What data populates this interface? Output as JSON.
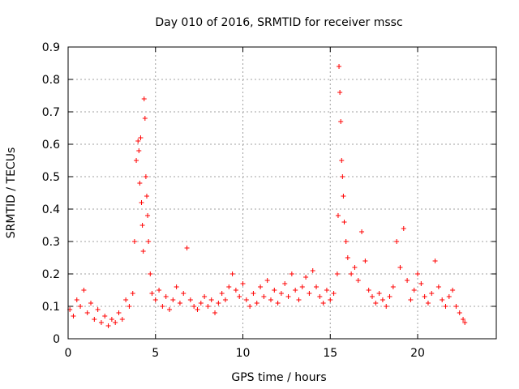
{
  "chart_data": {
    "type": "scatter",
    "title": "Day 010 of 2016, SRMTID for receiver mssc",
    "xlabel": "GPS time / hours",
    "ylabel": "SRMTID / TECUs",
    "xlim": [
      0,
      24.5
    ],
    "ylim": [
      0,
      0.9
    ],
    "xticks": [
      0,
      5,
      10,
      15,
      20
    ],
    "xtick_labels": [
      "0",
      "5",
      "10",
      "15",
      "20"
    ],
    "yticks": [
      0,
      0.1,
      0.2,
      0.3,
      0.4,
      0.5,
      0.6,
      0.7,
      0.8,
      0.9
    ],
    "ytick_labels": [
      "0",
      "0.1",
      "0.2",
      "0.3",
      "0.4",
      "0.5",
      "0.6",
      "0.7",
      "0.8",
      "0.9"
    ],
    "grid": true,
    "marker": "plus",
    "color": "#ff0000",
    "series": [
      {
        "name": "SRMTID",
        "points": [
          [
            0.1,
            0.09
          ],
          [
            0.3,
            0.07
          ],
          [
            0.5,
            0.12
          ],
          [
            0.7,
            0.1
          ],
          [
            0.9,
            0.15
          ],
          [
            1.1,
            0.08
          ],
          [
            1.3,
            0.11
          ],
          [
            1.5,
            0.06
          ],
          [
            1.7,
            0.09
          ],
          [
            1.9,
            0.05
          ],
          [
            2.1,
            0.07
          ],
          [
            2.3,
            0.04
          ],
          [
            2.5,
            0.06
          ],
          [
            2.7,
            0.05
          ],
          [
            2.9,
            0.08
          ],
          [
            3.1,
            0.06
          ],
          [
            3.3,
            0.12
          ],
          [
            3.5,
            0.1
          ],
          [
            3.7,
            0.14
          ],
          [
            3.8,
            0.3
          ],
          [
            3.9,
            0.55
          ],
          [
            4.0,
            0.61
          ],
          [
            4.05,
            0.58
          ],
          [
            4.1,
            0.48
          ],
          [
            4.15,
            0.62
          ],
          [
            4.2,
            0.42
          ],
          [
            4.25,
            0.35
          ],
          [
            4.3,
            0.27
          ],
          [
            4.35,
            0.74
          ],
          [
            4.4,
            0.68
          ],
          [
            4.45,
            0.5
          ],
          [
            4.5,
            0.44
          ],
          [
            4.55,
            0.38
          ],
          [
            4.6,
            0.3
          ],
          [
            4.7,
            0.2
          ],
          [
            4.8,
            0.14
          ],
          [
            5.0,
            0.12
          ],
          [
            5.2,
            0.15
          ],
          [
            5.4,
            0.1
          ],
          [
            5.6,
            0.13
          ],
          [
            5.8,
            0.09
          ],
          [
            6.0,
            0.12
          ],
          [
            6.2,
            0.16
          ],
          [
            6.4,
            0.11
          ],
          [
            6.6,
            0.14
          ],
          [
            6.8,
            0.28
          ],
          [
            7.0,
            0.12
          ],
          [
            7.2,
            0.1
          ],
          [
            7.4,
            0.09
          ],
          [
            7.6,
            0.11
          ],
          [
            7.8,
            0.13
          ],
          [
            8.0,
            0.1
          ],
          [
            8.2,
            0.12
          ],
          [
            8.4,
            0.08
          ],
          [
            8.6,
            0.11
          ],
          [
            8.8,
            0.14
          ],
          [
            9.0,
            0.12
          ],
          [
            9.2,
            0.16
          ],
          [
            9.4,
            0.2
          ],
          [
            9.6,
            0.15
          ],
          [
            9.8,
            0.13
          ],
          [
            10.0,
            0.17
          ],
          [
            10.2,
            0.12
          ],
          [
            10.4,
            0.1
          ],
          [
            10.6,
            0.14
          ],
          [
            10.8,
            0.11
          ],
          [
            11.0,
            0.16
          ],
          [
            11.2,
            0.13
          ],
          [
            11.4,
            0.18
          ],
          [
            11.6,
            0.12
          ],
          [
            11.8,
            0.15
          ],
          [
            12.0,
            0.11
          ],
          [
            12.2,
            0.14
          ],
          [
            12.4,
            0.17
          ],
          [
            12.6,
            0.13
          ],
          [
            12.8,
            0.2
          ],
          [
            13.0,
            0.15
          ],
          [
            13.2,
            0.12
          ],
          [
            13.4,
            0.16
          ],
          [
            13.6,
            0.19
          ],
          [
            13.8,
            0.14
          ],
          [
            14.0,
            0.21
          ],
          [
            14.2,
            0.16
          ],
          [
            14.4,
            0.13
          ],
          [
            14.6,
            0.11
          ],
          [
            14.8,
            0.15
          ],
          [
            15.0,
            0.12
          ],
          [
            15.2,
            0.14
          ],
          [
            15.4,
            0.2
          ],
          [
            15.45,
            0.38
          ],
          [
            15.5,
            0.84
          ],
          [
            15.55,
            0.76
          ],
          [
            15.6,
            0.67
          ],
          [
            15.65,
            0.55
          ],
          [
            15.7,
            0.5
          ],
          [
            15.75,
            0.44
          ],
          [
            15.8,
            0.36
          ],
          [
            15.9,
            0.3
          ],
          [
            16.0,
            0.25
          ],
          [
            16.2,
            0.2
          ],
          [
            16.4,
            0.22
          ],
          [
            16.6,
            0.18
          ],
          [
            16.8,
            0.33
          ],
          [
            17.0,
            0.24
          ],
          [
            17.2,
            0.15
          ],
          [
            17.4,
            0.13
          ],
          [
            17.6,
            0.11
          ],
          [
            17.8,
            0.14
          ],
          [
            18.0,
            0.12
          ],
          [
            18.2,
            0.1
          ],
          [
            18.4,
            0.13
          ],
          [
            18.6,
            0.16
          ],
          [
            18.8,
            0.3
          ],
          [
            19.0,
            0.22
          ],
          [
            19.2,
            0.34
          ],
          [
            19.4,
            0.18
          ],
          [
            19.6,
            0.12
          ],
          [
            19.8,
            0.15
          ],
          [
            20.0,
            0.2
          ],
          [
            20.2,
            0.17
          ],
          [
            20.4,
            0.13
          ],
          [
            20.6,
            0.11
          ],
          [
            20.8,
            0.14
          ],
          [
            21.0,
            0.24
          ],
          [
            21.2,
            0.16
          ],
          [
            21.4,
            0.12
          ],
          [
            21.6,
            0.1
          ],
          [
            21.8,
            0.13
          ],
          [
            22.0,
            0.15
          ],
          [
            22.2,
            0.1
          ],
          [
            22.4,
            0.08
          ],
          [
            22.6,
            0.06
          ],
          [
            22.7,
            0.05
          ]
        ]
      }
    ]
  }
}
